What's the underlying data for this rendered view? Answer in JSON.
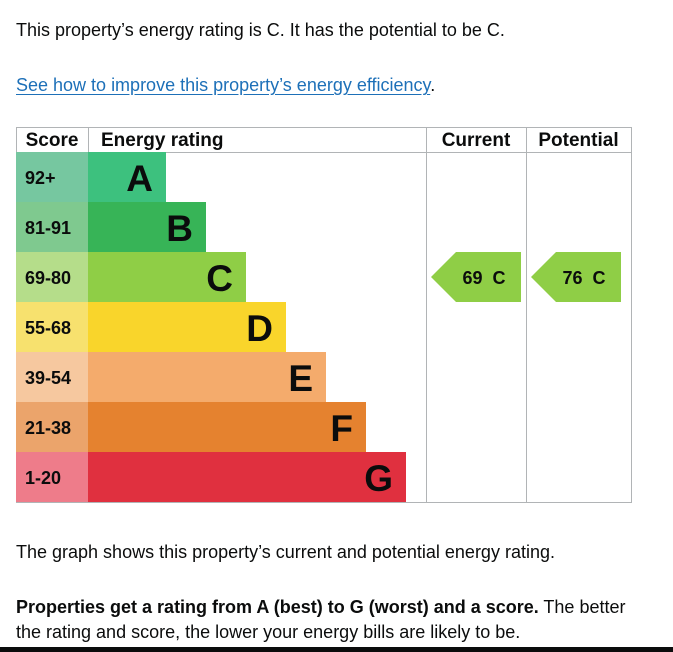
{
  "intro_text": "This property’s energy rating is C. It has the potential to be C.",
  "improve_link": "See how to improve this property’s energy efficiency",
  "improve_suffix": ".",
  "chart_data": {
    "type": "bar",
    "columns": {
      "score": "Score",
      "rating": "Energy rating",
      "current": "Current",
      "potential": "Potential"
    },
    "bands": [
      {
        "score": "92+",
        "letter": "A",
        "bar_color": "#3dc17e",
        "score_color": "#76c7a0"
      },
      {
        "score": "81-91",
        "letter": "B",
        "bar_color": "#37b457",
        "score_color": "#7fc98f"
      },
      {
        "score": "69-80",
        "letter": "C",
        "bar_color": "#8fce46",
        "score_color": "#b5dd8a"
      },
      {
        "score": "55-68",
        "letter": "D",
        "bar_color": "#f9d52b",
        "score_color": "#f7e16e"
      },
      {
        "score": "39-54",
        "letter": "E",
        "bar_color": "#f4ab6c",
        "score_color": "#f6c89f"
      },
      {
        "score": "21-38",
        "letter": "F",
        "bar_color": "#e5822f",
        "score_color": "#eba46b"
      },
      {
        "score": "1-20",
        "letter": "G",
        "bar_color": "#e0303f",
        "score_color": "#ee7c8a"
      }
    ],
    "current": {
      "value": 69,
      "letter": "C",
      "label": "69  C",
      "color": "#8fce46"
    },
    "potential": {
      "value": 76,
      "letter": "C",
      "label": "76  C",
      "color": "#8fce46"
    }
  },
  "graph_caption": "The graph shows this property’s current and potential energy rating.",
  "explain_bold": "Properties get a rating from A (best) to G (worst) and a score.",
  "explain_rest": " The better the rating and score, the lower your energy bills are likely to be."
}
